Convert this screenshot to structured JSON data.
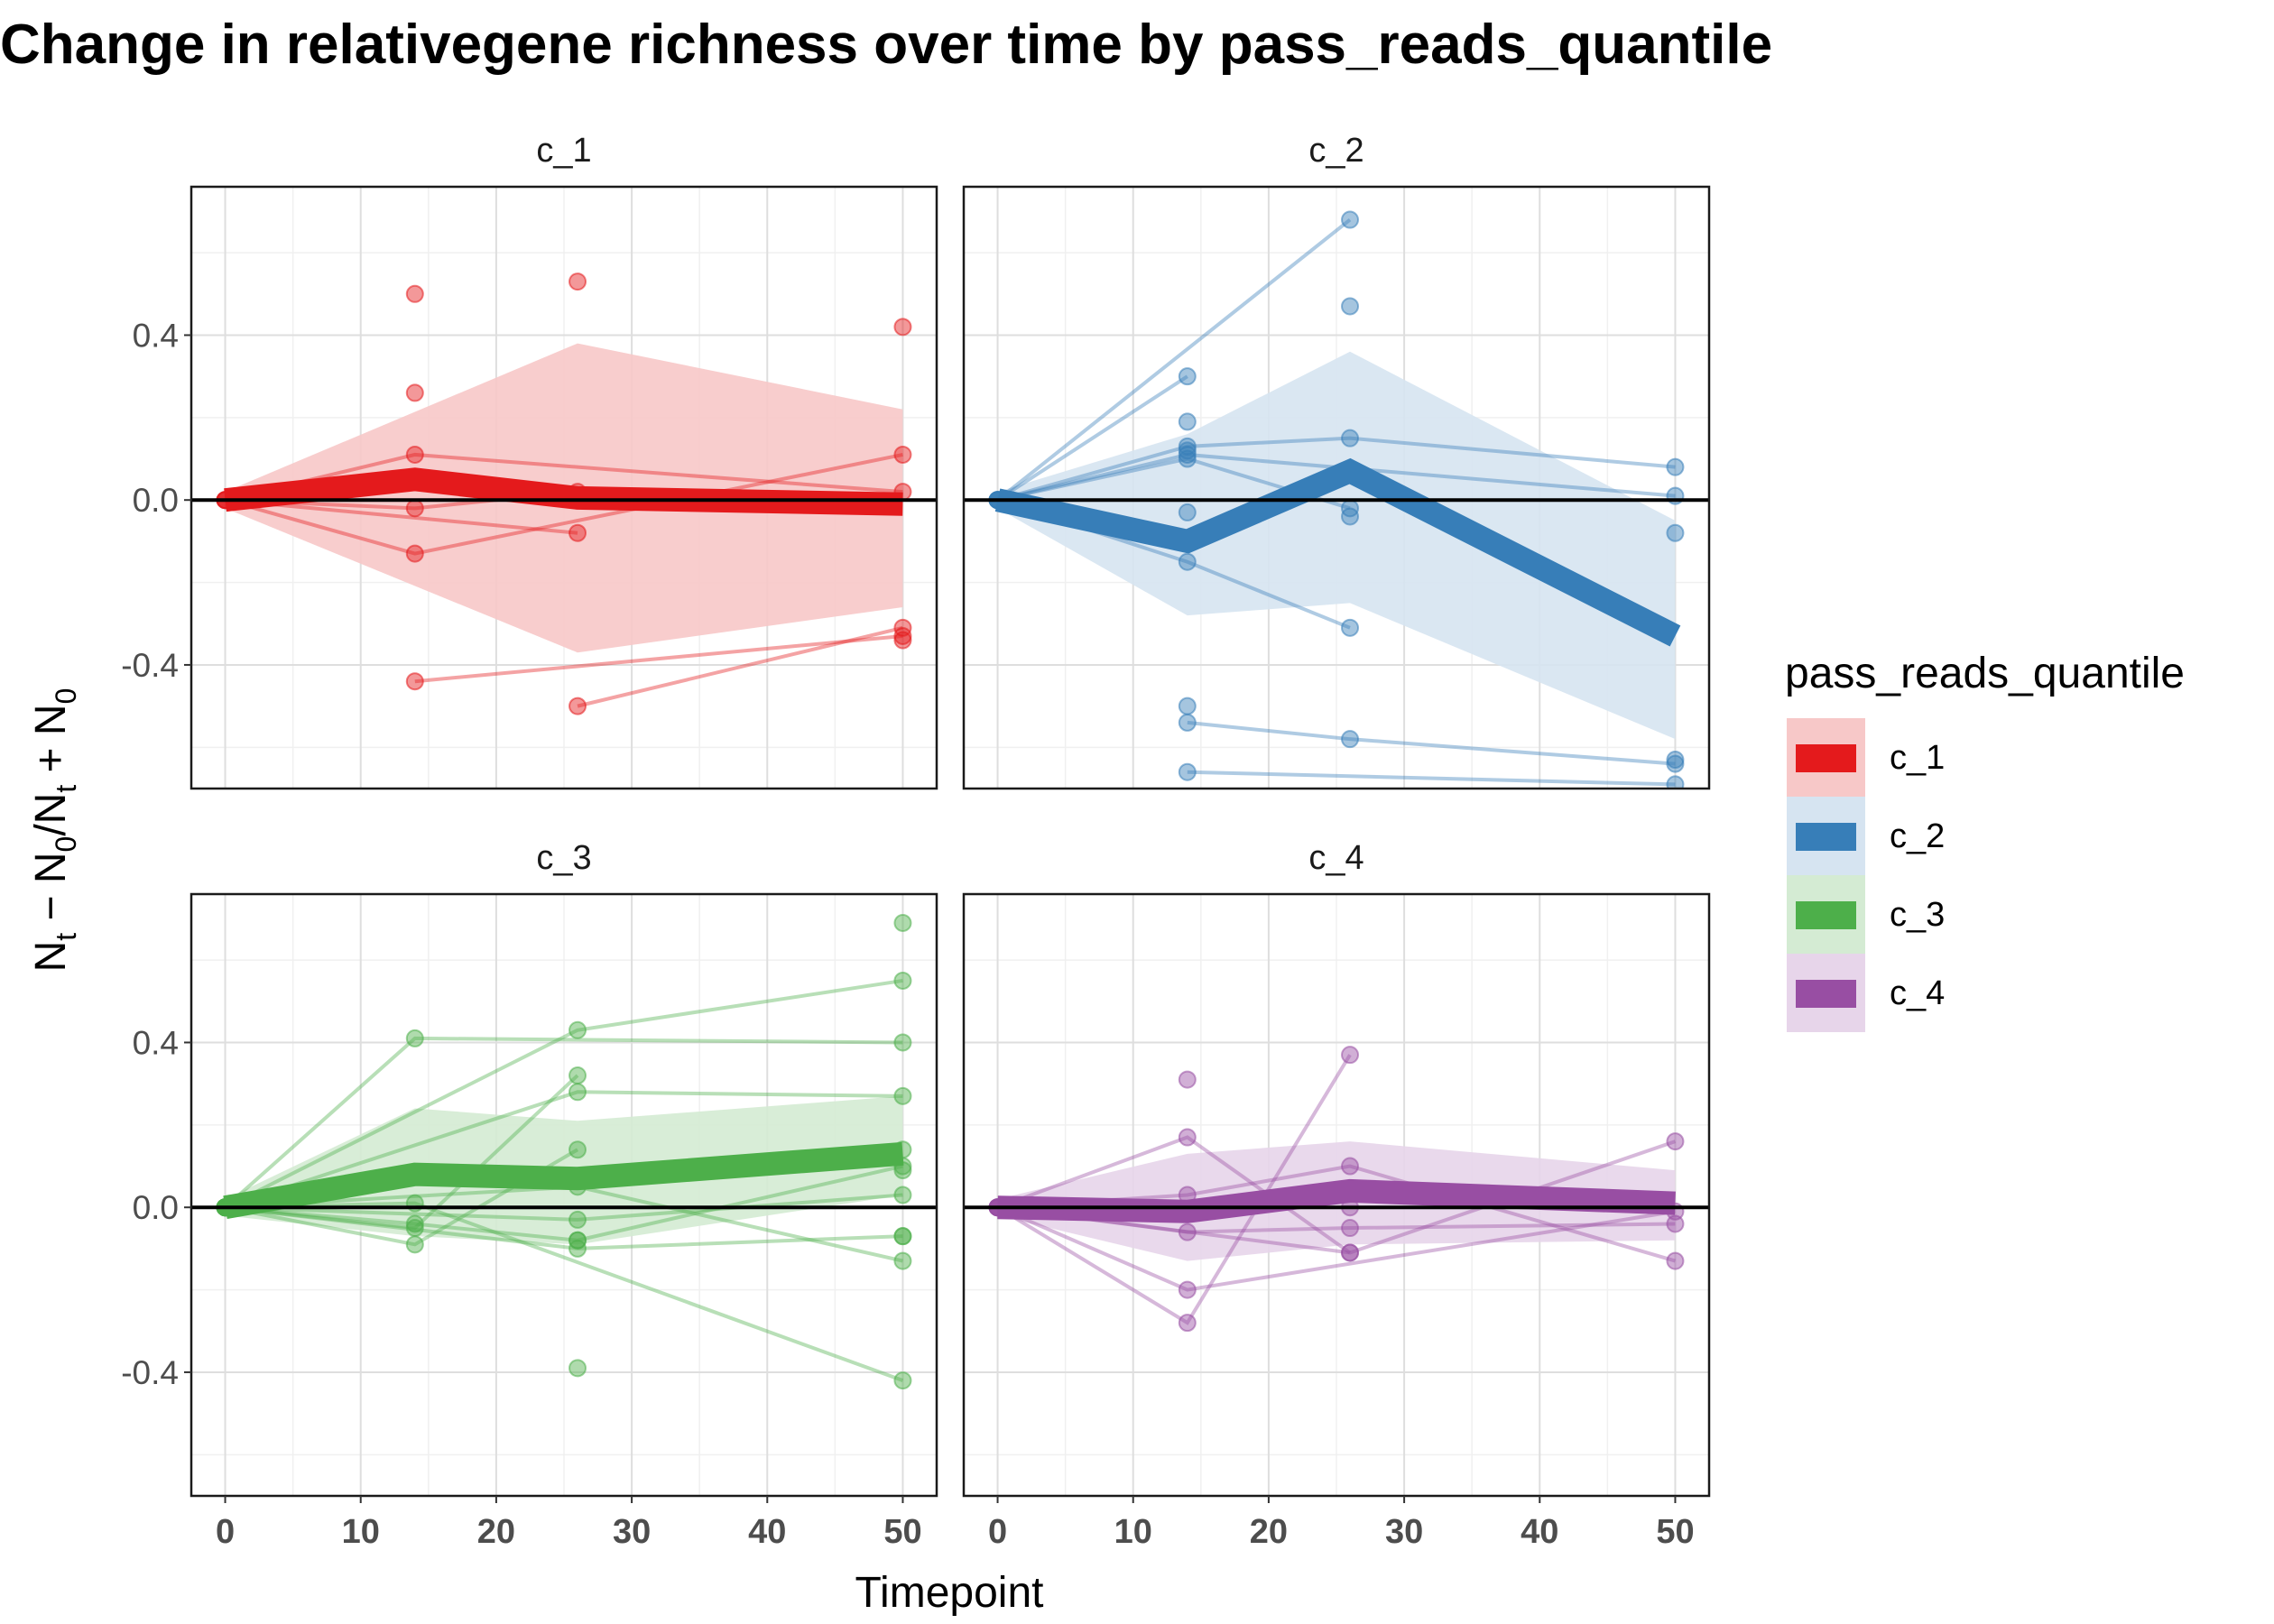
{
  "chart_data": {
    "type": "line",
    "title": "Change in relativegene richness over time by pass_reads_quantile",
    "xlabel": "Timepoint",
    "ylabel": "N_t − N_0/N_t + N_0",
    "xlim": [
      -2.5,
      52.5
    ],
    "ylim": [
      -0.7,
      0.76
    ],
    "x_ticks": [
      0,
      10,
      20,
      30,
      40,
      50
    ],
    "y_ticks": [
      -0.4,
      0.0,
      0.4
    ],
    "y_tick_labels": [
      "-0.4",
      "0.0",
      "0.4"
    ],
    "x_tick_labels": [
      "0",
      "10",
      "20",
      "30",
      "40",
      "50"
    ],
    "hline": 0,
    "grid": true,
    "legend": {
      "title": "pass_reads_quantile",
      "placement": "right",
      "entries": [
        "c_1",
        "c_2",
        "c_3",
        "c_4"
      ]
    },
    "panels": [
      {
        "name": "c_1",
        "color": "#E41A1C",
        "band_color": "#F7C8C8",
        "mean": {
          "x": [
            0,
            14,
            26,
            50
          ],
          "y": [
            0.0,
            0.05,
            0.005,
            -0.01
          ]
        },
        "ribbon": {
          "x": [
            0,
            26,
            50
          ],
          "lower": [
            -0.02,
            -0.37,
            -0.26
          ],
          "upper": [
            0.02,
            0.38,
            0.22
          ]
        },
        "lines": [
          {
            "x": [
              0,
              14,
              50
            ],
            "y": [
              0.0,
              0.11,
              0.02
            ]
          },
          {
            "x": [
              0,
              14,
              50
            ],
            "y": [
              0.0,
              -0.13,
              0.11
            ]
          },
          {
            "x": [
              0,
              14,
              26
            ],
            "y": [
              0.0,
              -0.02,
              0.02
            ]
          },
          {
            "x": [
              0,
              26
            ],
            "y": [
              0.0,
              -0.08
            ]
          },
          {
            "x": [
              14,
              50
            ],
            "y": [
              -0.44,
              -0.33
            ]
          },
          {
            "x": [
              26,
              50
            ],
            "y": [
              -0.5,
              -0.31
            ]
          }
        ],
        "points": [
          {
            "x": 14,
            "y": 0.5
          },
          {
            "x": 14,
            "y": 0.26
          },
          {
            "x": 26,
            "y": 0.53
          },
          {
            "x": 50,
            "y": 0.42
          },
          {
            "x": 50,
            "y": -0.34
          }
        ]
      },
      {
        "name": "c_2",
        "color": "#377EB8",
        "band_color": "#D6E4F1",
        "mean": {
          "x": [
            0,
            14,
            26,
            50
          ],
          "y": [
            0.0,
            -0.1,
            0.07,
            -0.33
          ]
        },
        "ribbon": {
          "x": [
            0,
            14,
            26,
            50
          ],
          "lower": [
            -0.02,
            -0.28,
            -0.25,
            -0.58
          ],
          "upper": [
            0.02,
            0.16,
            0.36,
            -0.05
          ]
        },
        "lines": [
          {
            "x": [
              0,
              26
            ],
            "y": [
              0.0,
              0.68
            ]
          },
          {
            "x": [
              0,
              14
            ],
            "y": [
              0.0,
              0.3
            ]
          },
          {
            "x": [
              0,
              14,
              26,
              50
            ],
            "y": [
              0.0,
              0.13,
              0.15,
              0.08
            ]
          },
          {
            "x": [
              0,
              14,
              50
            ],
            "y": [
              0.0,
              0.11,
              0.01
            ]
          },
          {
            "x": [
              0,
              14,
              26
            ],
            "y": [
              0.0,
              0.1,
              -0.02
            ]
          },
          {
            "x": [
              0,
              14,
              26
            ],
            "y": [
              0.0,
              -0.15,
              -0.31
            ]
          },
          {
            "x": [
              14,
              26,
              50
            ],
            "y": [
              -0.54,
              -0.58,
              -0.64
            ]
          },
          {
            "x": [
              14,
              50
            ],
            "y": [
              -0.66,
              -0.69
            ]
          }
        ],
        "points": [
          {
            "x": 14,
            "y": 0.19
          },
          {
            "x": 14,
            "y": 0.12
          },
          {
            "x": 14,
            "y": -0.03
          },
          {
            "x": 14,
            "y": -0.5
          },
          {
            "x": 26,
            "y": 0.47
          },
          {
            "x": 26,
            "y": -0.04
          },
          {
            "x": 50,
            "y": -0.08
          },
          {
            "x": 50,
            "y": -0.63
          }
        ]
      },
      {
        "name": "c_3",
        "color": "#4DAF4A",
        "band_color": "#D4EBD3",
        "mean": {
          "x": [
            0,
            14,
            26,
            50
          ],
          "y": [
            0.0,
            0.08,
            0.07,
            0.13
          ]
        },
        "ribbon": {
          "x": [
            0,
            14,
            26,
            50
          ],
          "lower": [
            -0.02,
            -0.07,
            -0.09,
            0.03
          ],
          "upper": [
            0.02,
            0.24,
            0.21,
            0.27
          ]
        },
        "lines": [
          {
            "x": [
              0,
              14,
              50
            ],
            "y": [
              0.0,
              0.41,
              0.4
            ]
          },
          {
            "x": [
              0,
              26,
              50
            ],
            "y": [
              0.0,
              0.43,
              0.55
            ]
          },
          {
            "x": [
              0,
              26,
              50
            ],
            "y": [
              0.0,
              0.28,
              0.27
            ]
          },
          {
            "x": [
              0,
              14,
              26
            ],
            "y": [
              0.0,
              -0.05,
              0.32
            ]
          },
          {
            "x": [
              0,
              26,
              50
            ],
            "y": [
              0.0,
              0.05,
              -0.13
            ]
          },
          {
            "x": [
              0,
              14,
              50
            ],
            "y": [
              0.0,
              0.01,
              -0.42
            ]
          },
          {
            "x": [
              0,
              14,
              26,
              50
            ],
            "y": [
              0.0,
              -0.04,
              -0.08,
              0.1
            ]
          },
          {
            "x": [
              0,
              26,
              50
            ],
            "y": [
              0.0,
              -0.1,
              -0.07
            ]
          },
          {
            "x": [
              0,
              14,
              26
            ],
            "y": [
              0.0,
              -0.09,
              0.14
            ]
          },
          {
            "x": [
              0,
              26,
              50
            ],
            "y": [
              0.0,
              -0.03,
              0.03
            ]
          }
        ],
        "points": [
          {
            "x": 26,
            "y": -0.39
          },
          {
            "x": 50,
            "y": 0.69
          },
          {
            "x": 50,
            "y": 0.14
          },
          {
            "x": 50,
            "y": 0.09
          },
          {
            "x": 50,
            "y": -0.07
          },
          {
            "x": 26,
            "y": -0.08
          }
        ]
      },
      {
        "name": "c_4",
        "color": "#984EA3",
        "band_color": "#E7D5EA",
        "mean": {
          "x": [
            0,
            14,
            26,
            50
          ],
          "y": [
            0.0,
            -0.01,
            0.04,
            0.01
          ]
        },
        "ribbon": {
          "x": [
            0,
            14,
            26,
            50
          ],
          "lower": [
            -0.02,
            -0.13,
            -0.09,
            -0.08
          ],
          "upper": [
            0.02,
            0.13,
            0.16,
            0.09
          ]
        },
        "lines": [
          {
            "x": [
              0,
              14,
              26
            ],
            "y": [
              0.0,
              -0.28,
              0.37
            ]
          },
          {
            "x": [
              0,
              14,
              26,
              50
            ],
            "y": [
              0.0,
              0.03,
              0.1,
              -0.13
            ]
          },
          {
            "x": [
              0,
              14,
              26
            ],
            "y": [
              0.0,
              0.17,
              -0.11
            ]
          },
          {
            "x": [
              0,
              14,
              26,
              50
            ],
            "y": [
              0.0,
              -0.06,
              -0.05,
              -0.04
            ]
          },
          {
            "x": [
              0,
              26,
              50
            ],
            "y": [
              0.0,
              -0.11,
              0.16
            ]
          },
          {
            "x": [
              0,
              14,
              50
            ],
            "y": [
              0.0,
              -0.2,
              -0.01
            ]
          }
        ],
        "points": [
          {
            "x": 14,
            "y": 0.31
          },
          {
            "x": 26,
            "y": 0.0
          }
        ]
      }
    ]
  }
}
